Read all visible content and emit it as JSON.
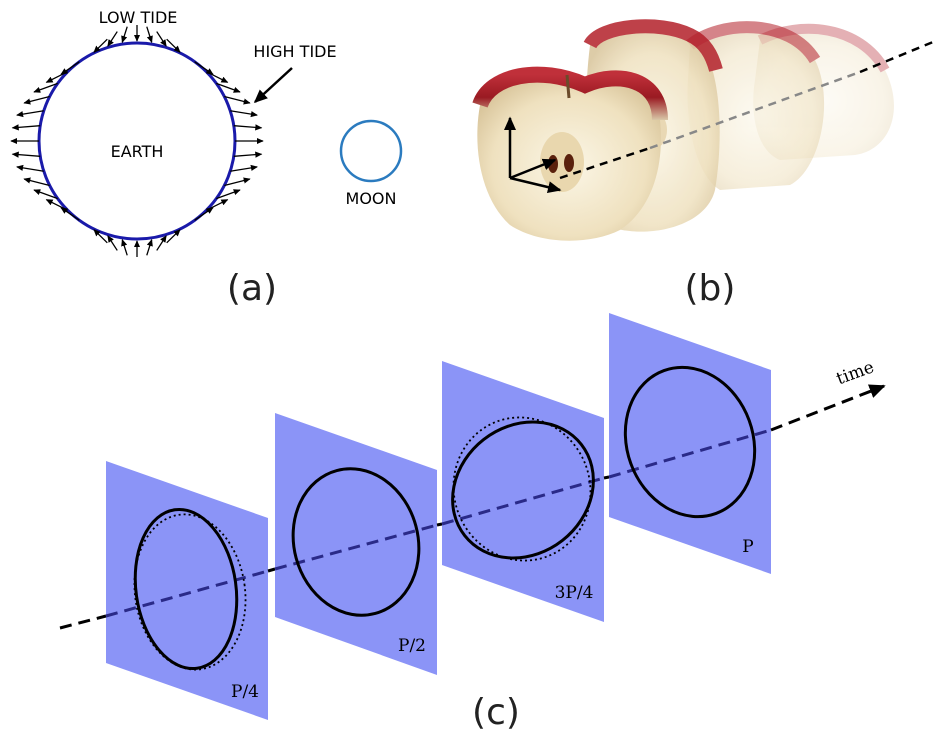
{
  "panel_a": {
    "low_tide_label": "LOW TIDE",
    "high_tide_label": "HIGH TIDE",
    "earth_label": "EARTH",
    "moon_label": "MOON",
    "caption": "(a)"
  },
  "panel_b": {
    "caption": "(b)"
  },
  "panel_c": {
    "axis_label": "time",
    "slice_labels": [
      "P/4",
      "P/2",
      "3P/4",
      "P"
    ],
    "caption": "(c)"
  },
  "colors": {
    "earth_outline": "#1a1aaa",
    "moon_outline": "#2b7bbf",
    "plane_fill": "#8b94f7",
    "apple_skin": "#b3202a",
    "apple_flesh": "#f3ead2"
  }
}
